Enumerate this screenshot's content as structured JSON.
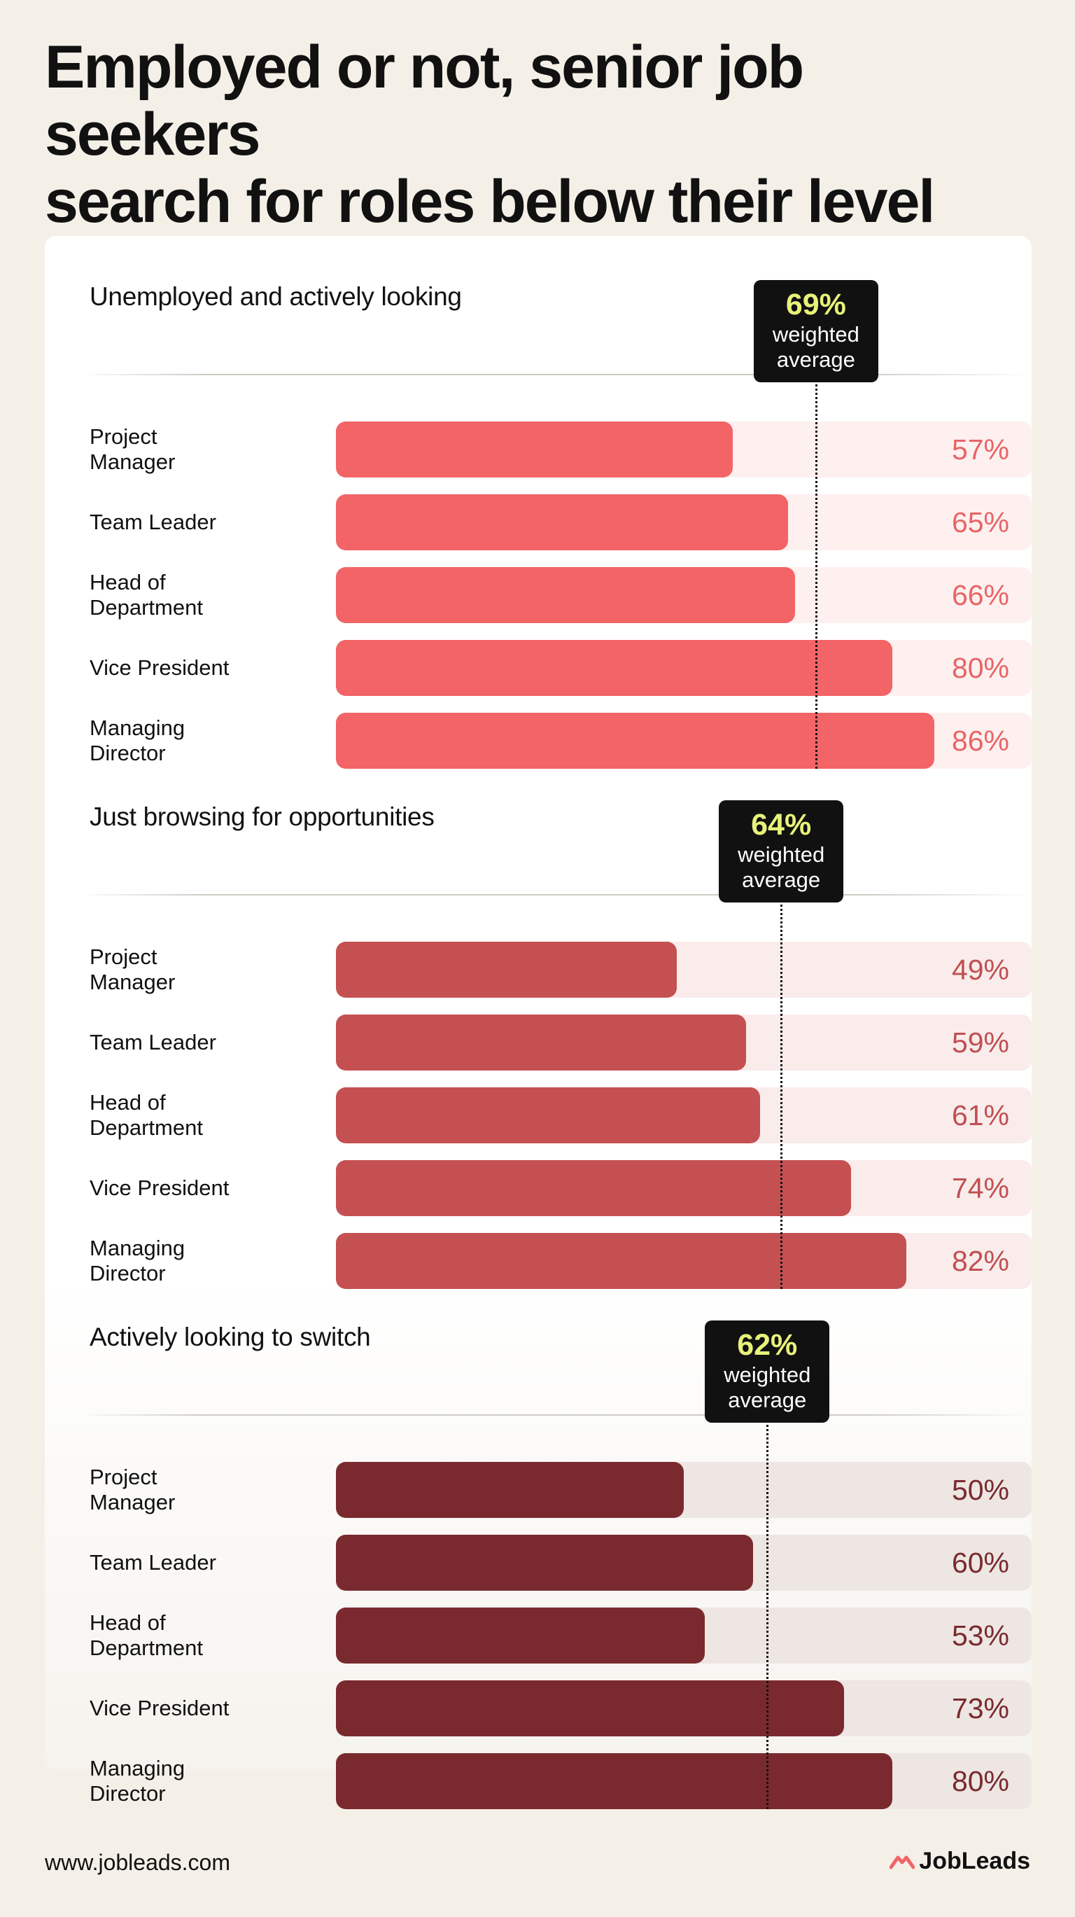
{
  "title_lines": [
    "Employed or not, senior job seekers",
    "search for roles below their level"
  ],
  "footer": {
    "url": "www.jobleads.com",
    "brand": "JobLeads",
    "brand_icon": "jobleads-logo-icon"
  },
  "avg_label": "weighted average",
  "chart_data": [
    {
      "type": "bar",
      "orientation": "horizontal",
      "title": "Unemployed and actively looking",
      "categories": [
        "Project Manager",
        "Team Leader",
        "Head of Department",
        "Vice President",
        "Managing Director"
      ],
      "values": [
        57,
        65,
        66,
        80,
        86
      ],
      "value_labels": [
        "57%",
        "65%",
        "66%",
        "80%",
        "86%"
      ],
      "xlim": [
        0,
        100
      ],
      "weighted_average": 69,
      "weighted_average_label": "69%",
      "bar_color": "#f26466",
      "track_color": "#fdf0ef",
      "label_color": "#e86466"
    },
    {
      "type": "bar",
      "orientation": "horizontal",
      "title": "Just browsing for opportunities",
      "categories": [
        "Project Manager",
        "Team Leader",
        "Head of Department",
        "Vice President",
        "Managing Director"
      ],
      "values": [
        49,
        59,
        61,
        74,
        82
      ],
      "value_labels": [
        "49%",
        "59%",
        "61%",
        "74%",
        "82%"
      ],
      "xlim": [
        0,
        100
      ],
      "weighted_average": 64,
      "weighted_average_label": "64%",
      "bar_color": "#c55052",
      "track_color": "#f9eceb",
      "label_color": "#c04f51"
    },
    {
      "type": "bar",
      "orientation": "horizontal",
      "title": "Actively looking to switch",
      "categories": [
        "Project Manager",
        "Team Leader",
        "Head of Department",
        "Vice President",
        "Managing Director"
      ],
      "values": [
        50,
        60,
        53,
        73,
        80
      ],
      "value_labels": [
        "50%",
        "60%",
        "53%",
        "73%",
        "80%"
      ],
      "xlim": [
        0,
        100
      ],
      "weighted_average": 62,
      "weighted_average_label": "62%",
      "bar_color": "#7a2a2e",
      "track_color": "#ede6e3",
      "label_color": "#7a2a2e"
    }
  ]
}
